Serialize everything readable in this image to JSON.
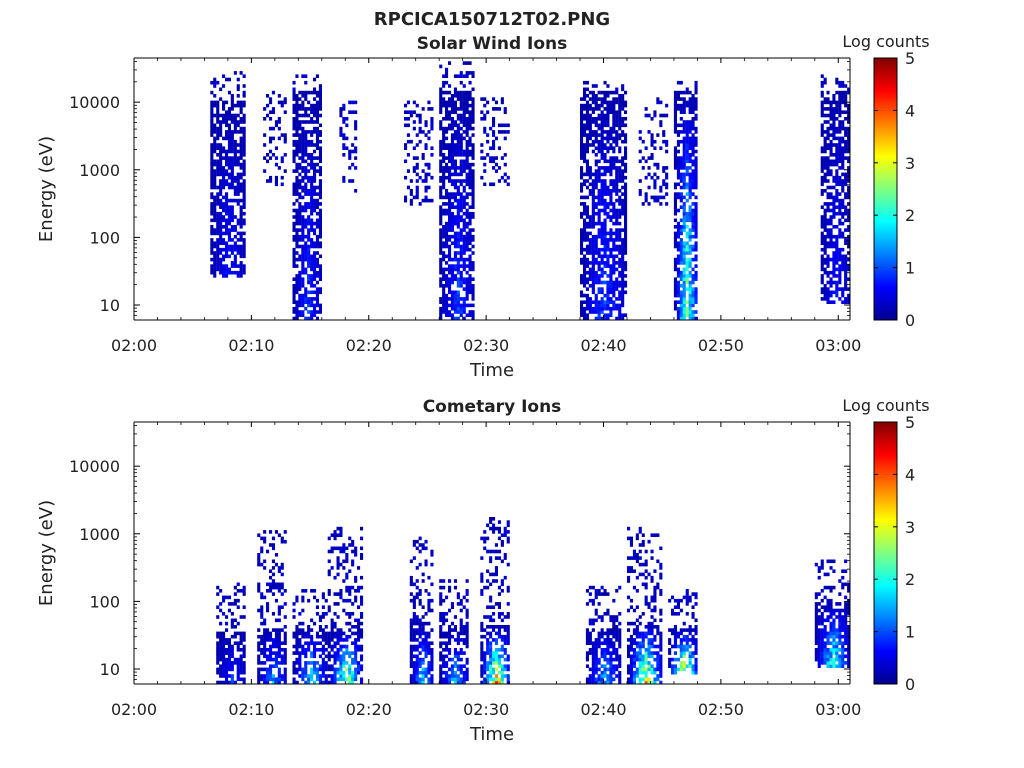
{
  "suptitle": "RPCICA150712T02.PNG",
  "colorbar": {
    "label": "Log counts",
    "range": [
      0,
      5
    ],
    "ticks": [
      "0",
      "1",
      "2",
      "3",
      "4",
      "5"
    ],
    "colormap": "jet"
  },
  "chart_data": [
    {
      "type": "heatmap",
      "title": "Solar Wind Ions",
      "xlabel": "Time",
      "ylabel": "Energy (eV)",
      "x_ticks": [
        "02:00",
        "02:10",
        "02:20",
        "02:30",
        "02:40",
        "02:50",
        "03:00"
      ],
      "x_range_minutes": [
        0,
        61
      ],
      "y_scale": "log",
      "y_range": [
        6,
        45000
      ],
      "y_ticks": [
        "10",
        "100",
        "1000",
        "10000"
      ],
      "value_label": "Log counts",
      "value_range": [
        0,
        5
      ],
      "bursts": [
        {
          "time_start": "02:06.5",
          "time_end": "02:09.5",
          "dense_range_eV": [
            25,
            10000
          ],
          "sparse_range_eV": [
            40,
            30000
          ],
          "peak_log_counts": 0.6
        },
        {
          "time_start": "02:11",
          "time_end": "02:13",
          "dense_range_eV": null,
          "sparse_range_eV": [
            600,
            15000
          ],
          "peak_log_counts": 0.3
        },
        {
          "time_start": "02:13.5",
          "time_end": "02:16",
          "dense_range_eV": [
            6,
            15000
          ],
          "sparse_range_eV": [
            100,
            25000
          ],
          "peak_log_counts": 0.8
        },
        {
          "time_start": "02:17.5",
          "time_end": "02:19",
          "dense_range_eV": null,
          "sparse_range_eV": [
            400,
            10000
          ],
          "peak_log_counts": 0.3
        },
        {
          "time_start": "02:23",
          "time_end": "02:25.5",
          "dense_range_eV": null,
          "sparse_range_eV": [
            300,
            10000
          ],
          "peak_log_counts": 0.3
        },
        {
          "time_start": "02:26",
          "time_end": "02:29",
          "dense_range_eV": [
            6,
            15000
          ],
          "sparse_range_eV": [
            100,
            40000
          ],
          "peak_log_counts": 0.9
        },
        {
          "time_start": "02:29.5",
          "time_end": "02:32",
          "dense_range_eV": null,
          "sparse_range_eV": [
            600,
            12000
          ],
          "peak_log_counts": 0.3
        },
        {
          "time_start": "02:38",
          "time_end": "02:42",
          "dense_range_eV": [
            6,
            15000
          ],
          "sparse_range_eV": [
            30,
            20000
          ],
          "peak_log_counts": 0.9
        },
        {
          "time_start": "02:43",
          "time_end": "02:45.5",
          "dense_range_eV": null,
          "sparse_range_eV": [
            300,
            12000
          ],
          "peak_log_counts": 0.3
        },
        {
          "time_start": "02:46",
          "time_end": "02:48",
          "dense_range_eV": [
            6,
            15000
          ],
          "sparse_range_eV": [
            100,
            20000
          ],
          "peak_log_counts": 2.6
        },
        {
          "time_start": "02:58.5",
          "time_end": "03:01",
          "dense_range_eV": [
            10,
            15000
          ],
          "sparse_range_eV": [
            40,
            25000
          ],
          "peak_log_counts": 0.6
        }
      ]
    },
    {
      "type": "heatmap",
      "title": "Cometary Ions",
      "xlabel": "Time",
      "ylabel": "Energy (eV)",
      "x_ticks": [
        "02:00",
        "02:10",
        "02:20",
        "02:30",
        "02:40",
        "02:50",
        "03:00"
      ],
      "x_range_minutes": [
        0,
        61
      ],
      "y_scale": "log",
      "y_range": [
        6,
        45000
      ],
      "y_ticks": [
        "10",
        "100",
        "1000",
        "10000"
      ],
      "value_label": "Log counts",
      "value_range": [
        0,
        5
      ],
      "bursts": [
        {
          "time_start": "02:07",
          "time_end": "02:09.5",
          "dense_range_eV": [
            6,
            35
          ],
          "sparse_range_eV": [
            35,
            200
          ],
          "peak_log_counts": 0.8
        },
        {
          "time_start": "02:10.5",
          "time_end": "02:13",
          "dense_range_eV": [
            6,
            40
          ],
          "sparse_range_eV": [
            40,
            1100
          ],
          "peak_log_counts": 1.4
        },
        {
          "time_start": "02:13.5",
          "time_end": "02:16.5",
          "dense_range_eV": [
            6,
            40
          ],
          "sparse_range_eV": [
            40,
            150
          ],
          "peak_log_counts": 1.9
        },
        {
          "time_start": "02:16.5",
          "time_end": "02:19.5",
          "dense_range_eV": [
            6,
            40
          ],
          "sparse_range_eV": [
            40,
            1400
          ],
          "peak_log_counts": 2.9
        },
        {
          "time_start": "02:23.5",
          "time_end": "02:25.5",
          "dense_range_eV": [
            6,
            50
          ],
          "sparse_range_eV": [
            50,
            900
          ],
          "peak_log_counts": 1.7
        },
        {
          "time_start": "02:26",
          "time_end": "02:28.5",
          "dense_range_eV": [
            6,
            40
          ],
          "sparse_range_eV": [
            40,
            220
          ],
          "peak_log_counts": 1.6
        },
        {
          "time_start": "02:29.5",
          "time_end": "02:32",
          "dense_range_eV": [
            6,
            45
          ],
          "sparse_range_eV": [
            45,
            1700
          ],
          "peak_log_counts": 3.7
        },
        {
          "time_start": "02:38.5",
          "time_end": "02:41.5",
          "dense_range_eV": [
            6,
            40
          ],
          "sparse_range_eV": [
            40,
            180
          ],
          "peak_log_counts": 1.5
        },
        {
          "time_start": "02:42",
          "time_end": "02:45",
          "dense_range_eV": [
            6,
            50
          ],
          "sparse_range_eV": [
            50,
            1300
          ],
          "peak_log_counts": 3.4
        },
        {
          "time_start": "02:45.5",
          "time_end": "02:48",
          "dense_range_eV": [
            8,
            40
          ],
          "sparse_range_eV": [
            40,
            150
          ],
          "peak_log_counts": 3.7
        },
        {
          "time_start": "02:58",
          "time_end": "03:01",
          "dense_range_eV": [
            10,
            100
          ],
          "sparse_range_eV": [
            60,
            420
          ],
          "peak_log_counts": 2.3
        }
      ]
    }
  ]
}
